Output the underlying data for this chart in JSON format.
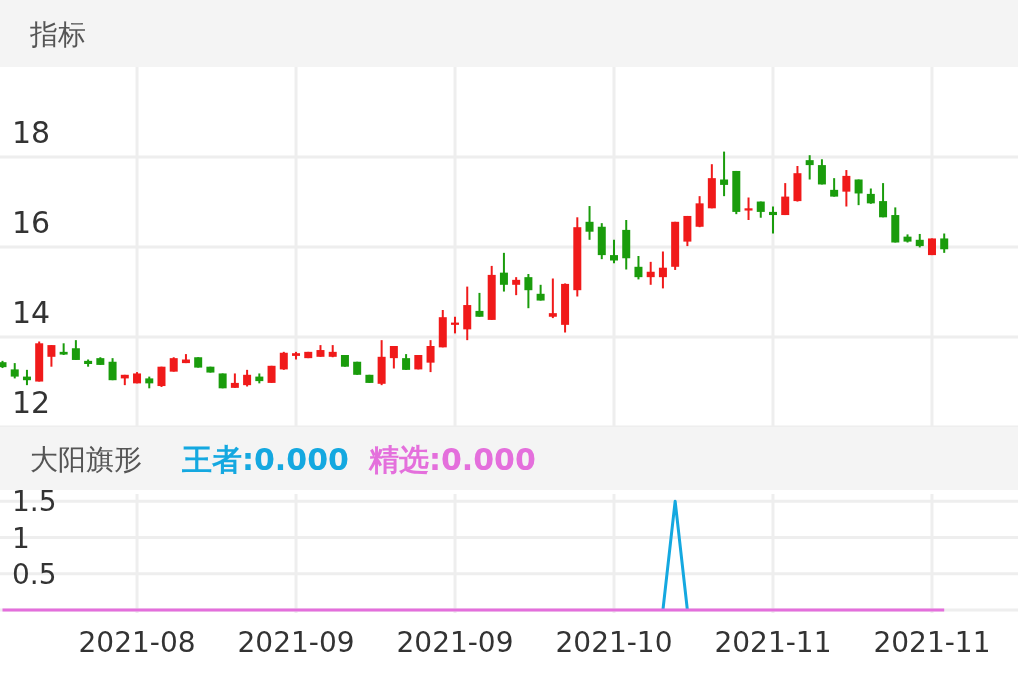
{
  "chart_data": [
    {
      "type": "candlestick",
      "title": "指标",
      "categories": [
        null,
        null,
        null,
        null,
        null,
        null,
        null,
        null,
        null,
        null,
        null,
        "2021-08",
        null,
        null,
        null,
        null,
        null,
        null,
        null,
        null,
        null,
        null,
        null,
        null,
        "2021-09",
        null,
        null,
        null,
        null,
        null,
        null,
        null,
        null,
        null,
        null,
        null,
        null,
        "2021-09",
        null,
        null,
        null,
        null,
        null,
        null,
        null,
        null,
        null,
        null,
        null,
        null,
        "2021-10",
        null,
        null,
        null,
        null,
        null,
        null,
        null,
        null,
        null,
        null,
        null,
        null,
        "2021-11",
        null,
        null,
        null,
        null,
        null,
        null,
        null,
        null,
        null,
        null,
        null,
        null,
        "2021-11",
        null
      ],
      "ohlc": [
        [
          13.44,
          13.47,
          13.31,
          13.33
        ],
        [
          13.28,
          13.42,
          13.08,
          13.12
        ],
        [
          13.12,
          13.27,
          12.93,
          13.04
        ],
        [
          13.01,
          13.9,
          13.01,
          13.86
        ],
        [
          13.56,
          13.82,
          13.34,
          13.82
        ],
        [
          13.67,
          13.86,
          13.6,
          13.61
        ],
        [
          13.75,
          13.93,
          13.49,
          13.49
        ],
        [
          13.47,
          13.5,
          13.34,
          13.4
        ],
        [
          13.53,
          13.55,
          13.38,
          13.38
        ],
        [
          13.45,
          13.53,
          13.04,
          13.04
        ],
        [
          13.08,
          13.16,
          12.93,
          13.16
        ],
        [
          12.97,
          13.22,
          12.97,
          13.19
        ],
        [
          13.08,
          13.12,
          12.86,
          12.97
        ],
        [
          12.91,
          13.34,
          12.89,
          13.34
        ],
        [
          13.23,
          13.55,
          13.23,
          13.53
        ],
        [
          13.42,
          13.62,
          13.42,
          13.5
        ],
        [
          13.55,
          13.55,
          13.32,
          13.32
        ],
        [
          13.34,
          13.34,
          13.21,
          13.21
        ],
        [
          13.19,
          13.19,
          12.86,
          12.86
        ],
        [
          12.87,
          13.19,
          12.87,
          12.98
        ],
        [
          12.93,
          13.27,
          12.9,
          13.16
        ],
        [
          13.12,
          13.19,
          12.97,
          13.02
        ],
        [
          12.98,
          13.36,
          12.98,
          13.36
        ],
        [
          13.28,
          13.67,
          13.27,
          13.65
        ],
        [
          13.58,
          13.67,
          13.5,
          13.64
        ],
        [
          13.53,
          13.67,
          13.53,
          13.67
        ],
        [
          13.56,
          13.82,
          13.56,
          13.71
        ],
        [
          13.56,
          13.82,
          13.55,
          13.67
        ],
        [
          13.6,
          13.6,
          13.34,
          13.34
        ],
        [
          13.45,
          13.45,
          13.16,
          13.16
        ],
        [
          13.16,
          13.16,
          12.98,
          12.98
        ],
        [
          12.96,
          13.93,
          12.93,
          13.56
        ],
        [
          13.53,
          13.8,
          13.3,
          13.8
        ],
        [
          13.53,
          13.62,
          13.27,
          13.27
        ],
        [
          13.28,
          13.6,
          13.28,
          13.6
        ],
        [
          13.43,
          13.93,
          13.22,
          13.8
        ],
        [
          13.77,
          14.6,
          13.77,
          14.44
        ],
        [
          14.27,
          14.45,
          14.08,
          14.32
        ],
        [
          14.17,
          15.12,
          13.93,
          14.71
        ],
        [
          14.58,
          14.98,
          14.45,
          14.45
        ],
        [
          14.38,
          15.58,
          14.38,
          15.38
        ],
        [
          15.43,
          15.87,
          15.01,
          15.16
        ],
        [
          15.16,
          15.33,
          14.93,
          15.27
        ],
        [
          15.33,
          15.4,
          14.64,
          15.04
        ],
        [
          14.96,
          15.16,
          14.81,
          14.81
        ],
        [
          14.45,
          15.3,
          14.42,
          14.53
        ],
        [
          14.27,
          15.19,
          14.1,
          15.18
        ],
        [
          15.04,
          16.66,
          14.9,
          16.44
        ],
        [
          16.56,
          16.91,
          16.16,
          16.34
        ],
        [
          16.45,
          16.53,
          15.73,
          15.82
        ],
        [
          15.82,
          16.16,
          15.64,
          15.7
        ],
        [
          16.38,
          16.6,
          15.5,
          15.75
        ],
        [
          15.56,
          15.8,
          15.28,
          15.33
        ],
        [
          15.33,
          15.67,
          15.16,
          15.45
        ],
        [
          15.33,
          15.9,
          15.08,
          15.54
        ],
        [
          15.56,
          16.56,
          15.49,
          16.56
        ],
        [
          16.12,
          16.69,
          16.02,
          16.69
        ],
        [
          16.45,
          17.13,
          16.44,
          16.97
        ],
        [
          16.86,
          17.84,
          16.86,
          17.53
        ],
        [
          17.5,
          18.12,
          17.13,
          17.38
        ],
        [
          17.69,
          17.69,
          16.73,
          16.78
        ],
        [
          16.81,
          17.1,
          16.6,
          16.86
        ],
        [
          17.01,
          17.01,
          16.65,
          16.78
        ],
        [
          16.78,
          16.9,
          16.3,
          16.71
        ],
        [
          16.71,
          17.42,
          16.71,
          17.12
        ],
        [
          17.02,
          17.8,
          17.01,
          17.64
        ],
        [
          17.93,
          18.04,
          17.5,
          17.82
        ],
        [
          17.82,
          17.95,
          17.39,
          17.39
        ],
        [
          17.27,
          17.53,
          17.12,
          17.12
        ],
        [
          17.23,
          17.71,
          16.9,
          17.58
        ],
        [
          17.5,
          17.5,
          16.93,
          17.19
        ],
        [
          17.18,
          17.3,
          16.96,
          16.97
        ],
        [
          17.02,
          17.42,
          16.66,
          16.66
        ],
        [
          16.71,
          16.88,
          16.1,
          16.1
        ],
        [
          16.23,
          16.28,
          16.1,
          16.12
        ],
        [
          16.16,
          16.29,
          15.99,
          16.02
        ],
        [
          15.82,
          16.19,
          15.82,
          16.19
        ],
        [
          16.19,
          16.3,
          15.87,
          15.95
        ]
      ],
      "colors": [
        "#1a9c0c",
        "#1a9c0c",
        "#1a9c0c",
        "#f01a1a",
        "#f01a1a",
        "#1a9c0c",
        "#1a9c0c",
        "#1a9c0c",
        "#1a9c0c",
        "#1a9c0c",
        "#f01a1a",
        "#f01a1a",
        "#1a9c0c",
        "#f01a1a",
        "#f01a1a",
        "#f01a1a",
        "#1a9c0c",
        "#1a9c0c",
        "#1a9c0c",
        "#f01a1a",
        "#f01a1a",
        "#1a9c0c",
        "#f01a1a",
        "#f01a1a",
        "#f01a1a",
        "#f01a1a",
        "#f01a1a",
        "#f01a1a",
        "#1a9c0c",
        "#1a9c0c",
        "#1a9c0c",
        "#f01a1a",
        "#f01a1a",
        "#1a9c0c",
        "#f01a1a",
        "#f01a1a",
        "#f01a1a",
        "#f01a1a",
        "#f01a1a",
        "#1a9c0c",
        "#f01a1a",
        "#1a9c0c",
        "#f01a1a",
        "#1a9c0c",
        "#1a9c0c",
        "#f01a1a",
        "#f01a1a",
        "#f01a1a",
        "#1a9c0c",
        "#1a9c0c",
        "#1a9c0c",
        "#1a9c0c",
        "#1a9c0c",
        "#f01a1a",
        "#f01a1a",
        "#f01a1a",
        "#f01a1a",
        "#f01a1a",
        "#f01a1a",
        "#1a9c0c",
        "#1a9c0c",
        "#f01a1a",
        "#1a9c0c",
        "#1a9c0c",
        "#f01a1a",
        "#f01a1a",
        "#1a9c0c",
        "#1a9c0c",
        "#1a9c0c",
        "#f01a1a",
        "#1a9c0c",
        "#1a9c0c",
        "#1a9c0c",
        "#1a9c0c",
        "#1a9c0c",
        "#1a9c0c",
        "#f01a1a",
        "#1a9c0c"
      ],
      "ylim": [
        12,
        20
      ],
      "yticks": [
        12,
        14,
        16,
        18
      ],
      "grid": true,
      "tick_labels": "y"
    },
    {
      "type": "line",
      "title": "大阳旗形",
      "categories": [
        null,
        null,
        null,
        null,
        null,
        null,
        null,
        null,
        null,
        null,
        null,
        "2021-08",
        null,
        null,
        null,
        null,
        null,
        null,
        null,
        null,
        null,
        null,
        null,
        null,
        "2021-09",
        null,
        null,
        null,
        null,
        null,
        null,
        null,
        null,
        null,
        null,
        null,
        null,
        "2021-09",
        null,
        null,
        null,
        null,
        null,
        null,
        null,
        null,
        null,
        null,
        null,
        null,
        "2021-10",
        null,
        null,
        null,
        null,
        null,
        null,
        null,
        null,
        null,
        null,
        null,
        null,
        "2021-11",
        null,
        null,
        null,
        null,
        null,
        null,
        null,
        null,
        null,
        null,
        null,
        null,
        "2021-11",
        null
      ],
      "series": [
        {
          "name": "王者:0.000",
          "color": "#14a8e0",
          "values": [
            null,
            null,
            null,
            null,
            null,
            null,
            null,
            null,
            null,
            null,
            null,
            null,
            null,
            null,
            null,
            null,
            null,
            null,
            null,
            null,
            null,
            null,
            null,
            null,
            null,
            null,
            null,
            null,
            null,
            null,
            null,
            null,
            null,
            null,
            null,
            null,
            null,
            null,
            null,
            null,
            null,
            null,
            null,
            null,
            null,
            null,
            null,
            null,
            null,
            null,
            null,
            null,
            null,
            null,
            0,
            1.5,
            0,
            null,
            null,
            null,
            null,
            null,
            null,
            null,
            null,
            null,
            null,
            null,
            null,
            null,
            null,
            null,
            null,
            null,
            null,
            null,
            null,
            null
          ]
        },
        {
          "name": "精选:0.000",
          "color": "#e46fdc",
          "values": [
            0,
            0,
            0,
            0,
            0,
            0,
            0,
            0,
            0,
            0,
            0,
            0,
            0,
            0,
            0,
            0,
            0,
            0,
            0,
            0,
            0,
            0,
            0,
            0,
            0,
            0,
            0,
            0,
            0,
            0,
            0,
            0,
            0,
            0,
            0,
            0,
            0,
            0,
            0,
            0,
            0,
            0,
            0,
            0,
            0,
            0,
            0,
            0,
            0,
            0,
            0,
            0,
            0,
            0,
            0,
            0,
            0,
            0,
            0,
            0,
            0,
            0,
            0,
            0,
            0,
            0,
            0,
            0,
            0,
            0,
            0,
            0,
            0,
            0,
            0,
            0,
            0,
            0
          ]
        }
      ],
      "ylim": [
        0,
        1.6
      ],
      "yticks": [
        {
          "value": 0,
          "label": null
        },
        0.5,
        1,
        1.5
      ],
      "grid": true,
      "legend": "top left"
    }
  ]
}
